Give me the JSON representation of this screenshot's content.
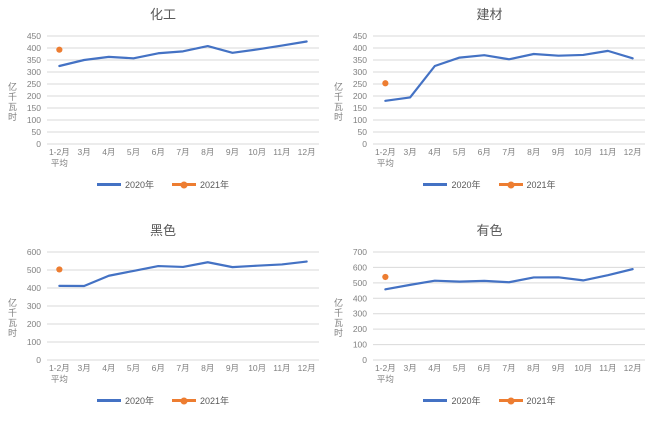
{
  "colors": {
    "background": "#ffffff",
    "grid": "#D9D9D9",
    "tick_text": "#808080",
    "title_text": "#595959",
    "legend_text": "#595959",
    "series_2020": "#4472C4",
    "series_2021": "#ED7D31"
  },
  "chart_data": [
    {
      "type": "line",
      "title": "化工",
      "ylabel": "亿千瓦时",
      "ylim": [
        0,
        450
      ],
      "ytick_step": 50,
      "grid": true,
      "legend_position": "bottom",
      "categories": [
        "1-2月\n平均",
        "3月",
        "4月",
        "5月",
        "6月",
        "7月",
        "8月",
        "9月",
        "10月",
        "11月",
        "12月"
      ],
      "series": [
        {
          "name": "2020年",
          "color": "#4472C4",
          "marker": "none",
          "values": [
            325,
            350,
            363,
            357,
            378,
            386,
            408,
            380,
            394,
            410,
            427
          ]
        },
        {
          "name": "2021年",
          "color": "#ED7D31",
          "marker": "circle",
          "values": [
            393,
            null,
            null,
            null,
            null,
            null,
            null,
            null,
            null,
            null,
            null
          ]
        }
      ]
    },
    {
      "type": "line",
      "title": "建材",
      "ylabel": "亿千瓦时",
      "ylim": [
        0,
        450
      ],
      "ytick_step": 50,
      "grid": true,
      "legend_position": "bottom",
      "categories": [
        "1-2月\n平均",
        "3月",
        "4月",
        "5月",
        "6月",
        "7月",
        "8月",
        "9月",
        "10月",
        "11月",
        "12月"
      ],
      "series": [
        {
          "name": "2020年",
          "color": "#4472C4",
          "marker": "none",
          "values": [
            180,
            194,
            325,
            360,
            370,
            353,
            375,
            368,
            371,
            388,
            357
          ]
        },
        {
          "name": "2021年",
          "color": "#ED7D31",
          "marker": "circle",
          "values": [
            253,
            null,
            null,
            null,
            null,
            null,
            null,
            null,
            null,
            null,
            null
          ]
        }
      ]
    },
    {
      "type": "line",
      "title": "黑色",
      "ylabel": "亿千瓦时",
      "ylim": [
        0,
        600
      ],
      "ytick_step": 100,
      "grid": true,
      "legend_position": "bottom",
      "categories": [
        "1-2月\n平均",
        "3月",
        "4月",
        "5月",
        "6月",
        "7月",
        "8月",
        "9月",
        "10月",
        "11月",
        "12月"
      ],
      "series": [
        {
          "name": "2020年",
          "color": "#4472C4",
          "marker": "none",
          "values": [
            412,
            411,
            468,
            495,
            522,
            517,
            543,
            516,
            524,
            531,
            547
          ]
        },
        {
          "name": "2021年",
          "color": "#ED7D31",
          "marker": "circle",
          "values": [
            503,
            null,
            null,
            null,
            null,
            null,
            null,
            null,
            null,
            null,
            null
          ]
        }
      ]
    },
    {
      "type": "line",
      "title": "有色",
      "ylabel": "亿千瓦时",
      "ylim": [
        0,
        700
      ],
      "ytick_step": 100,
      "grid": true,
      "legend_position": "bottom",
      "categories": [
        "1-2月\n平均",
        "3月",
        "4月",
        "5月",
        "6月",
        "7月",
        "8月",
        "9月",
        "10月",
        "11月",
        "12月"
      ],
      "series": [
        {
          "name": "2020年",
          "color": "#4472C4",
          "marker": "none",
          "values": [
            458,
            487,
            514,
            508,
            513,
            504,
            535,
            536,
            516,
            550,
            589
          ]
        },
        {
          "name": "2021年",
          "color": "#ED7D31",
          "marker": "circle",
          "values": [
            538,
            null,
            null,
            null,
            null,
            null,
            null,
            null,
            null,
            null,
            null
          ]
        }
      ]
    }
  ]
}
